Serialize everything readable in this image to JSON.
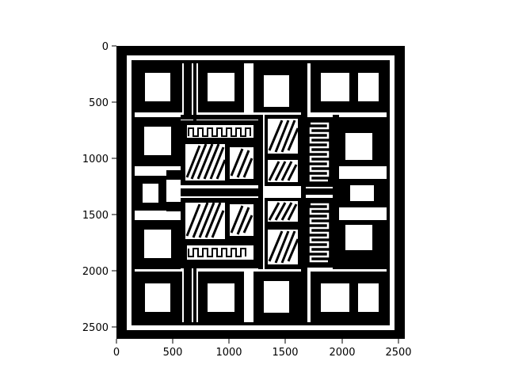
{
  "figure": {
    "kind": "binary-image-plot",
    "description_colors": {
      "foreground": "#000000",
      "background": "#ffffff"
    },
    "x_axis": {
      "ticks": [
        "0",
        "500",
        "1000",
        "1500",
        "2000",
        "2500"
      ],
      "range": [
        0,
        2550
      ]
    },
    "y_axis": {
      "ticks": [
        "0",
        "500",
        "1000",
        "1500",
        "2000",
        "2500"
      ],
      "range": [
        0,
        2600
      ],
      "inverted": true
    }
  }
}
